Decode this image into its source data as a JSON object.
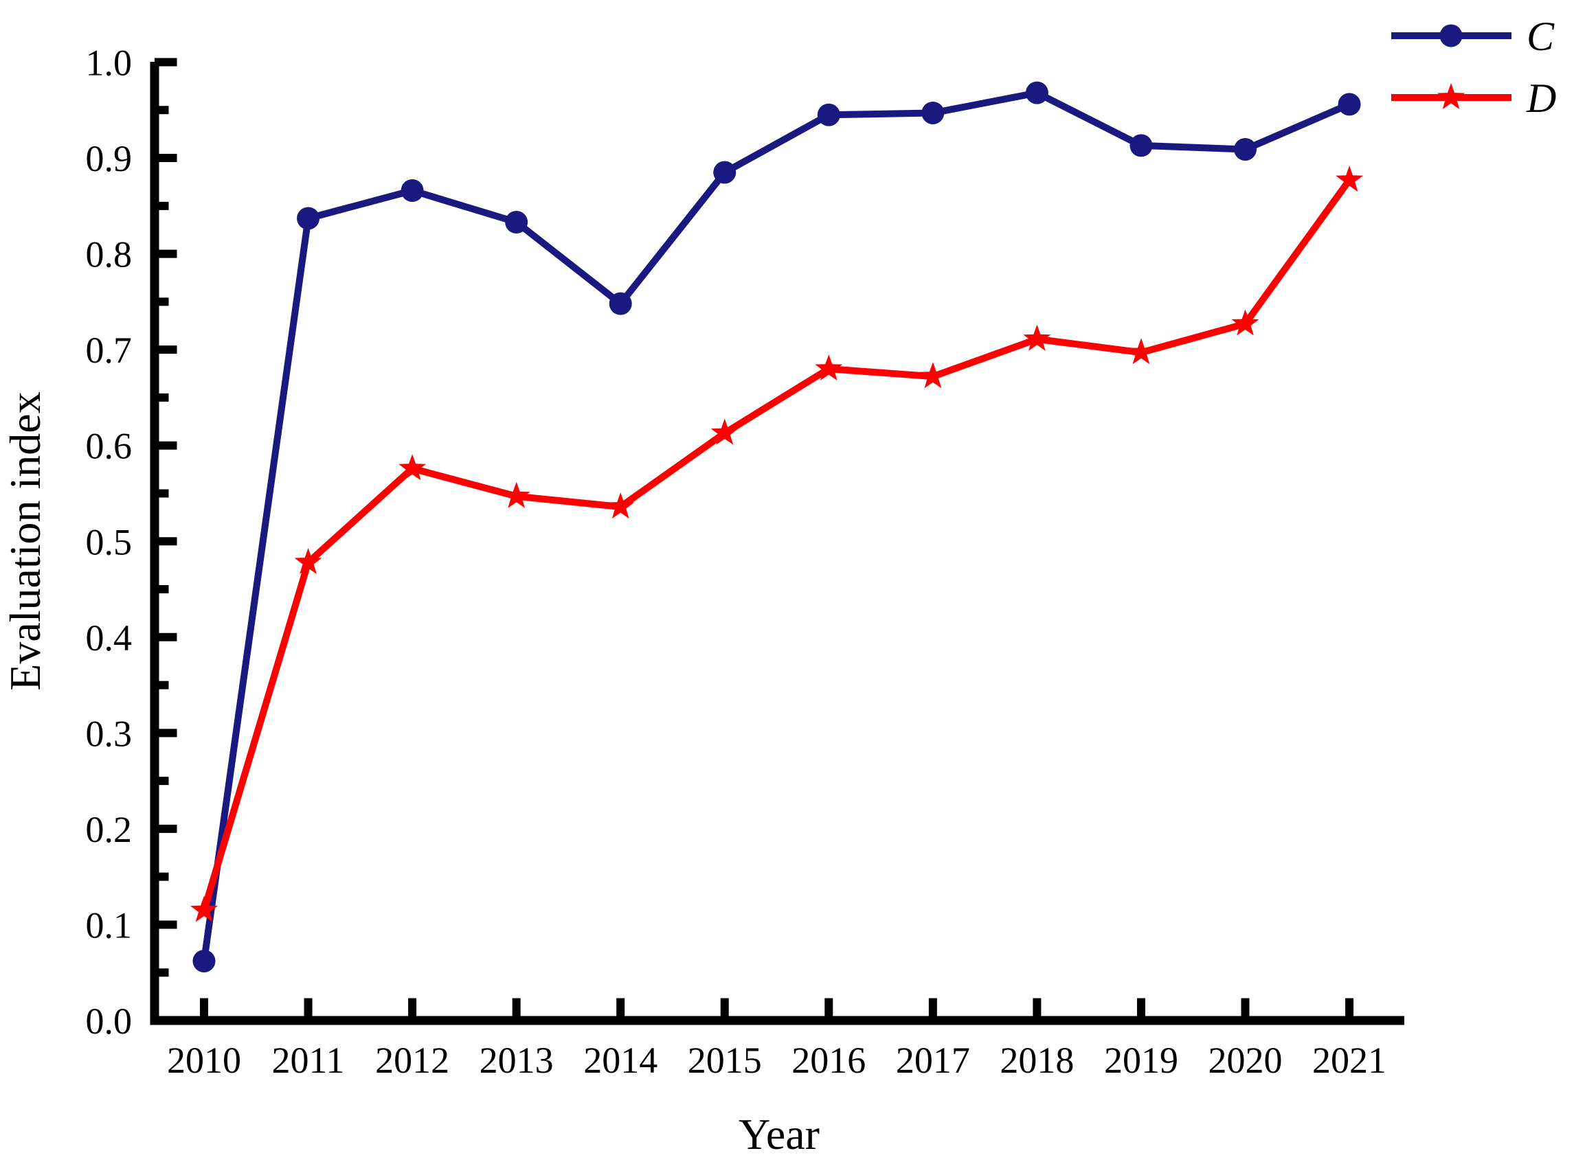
{
  "chart_data": {
    "type": "line",
    "title": "",
    "xlabel": "Year",
    "ylabel": "Evaluation index",
    "categories": [
      "2010",
      "2011",
      "2012",
      "2013",
      "2014",
      "2015",
      "2016",
      "2017",
      "2018",
      "2019",
      "2020",
      "2021"
    ],
    "ylim": [
      0.0,
      1.0
    ],
    "y_tick_values": [
      0.0,
      0.1,
      0.2,
      0.3,
      0.4,
      0.5,
      0.6,
      0.7,
      0.8,
      0.9,
      1.0
    ],
    "y_tick_labels": [
      "0.0",
      "0.1",
      "0.2",
      "0.3",
      "0.4",
      "0.5",
      "0.6",
      "0.7",
      "0.8",
      "0.9",
      "1.0"
    ],
    "y_minor_step": 0.05,
    "grid": false,
    "legend_position": "top-right",
    "axis_color": "#000000",
    "series": [
      {
        "name": "C",
        "color": "#191980",
        "marker": "circle",
        "values": [
          0.062,
          0.837,
          0.866,
          0.833,
          0.748,
          0.885,
          0.945,
          0.947,
          0.968,
          0.913,
          0.909,
          0.956
        ]
      },
      {
        "name": "D",
        "color": "#FF0000",
        "marker": "star",
        "values": [
          0.115,
          0.478,
          0.576,
          0.547,
          0.536,
          0.613,
          0.68,
          0.672,
          0.711,
          0.697,
          0.727,
          0.877
        ]
      }
    ]
  }
}
